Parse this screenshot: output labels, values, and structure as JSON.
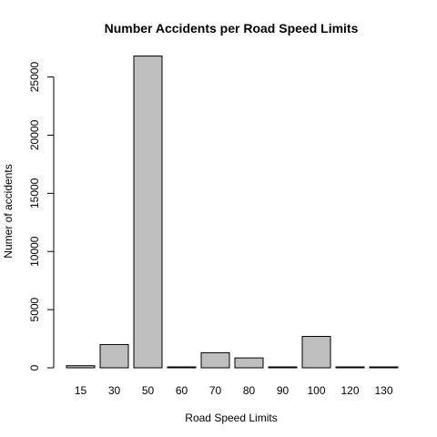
{
  "chart_data": {
    "type": "bar",
    "title": "Number Accidents per Road Speed Limits",
    "xlabel": "Road Speed Limits",
    "ylabel": "Numer of accidents",
    "categories": [
      "15",
      "30",
      "50",
      "60",
      "70",
      "80",
      "90",
      "100",
      "120",
      "130"
    ],
    "values": [
      180,
      2000,
      26800,
      80,
      1300,
      850,
      80,
      2700,
      80,
      30
    ],
    "yticks": [
      0,
      5000,
      10000,
      15000,
      20000,
      25000
    ],
    "ylim": [
      0,
      27000
    ],
    "bar_color": "#bebebe",
    "grid": false
  }
}
